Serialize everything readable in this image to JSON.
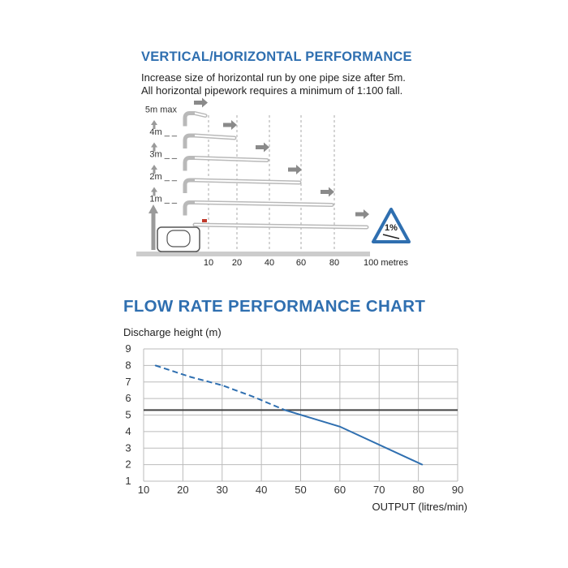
{
  "performance": {
    "title": "VERTICAL/HORIZONTAL PERFORMANCE",
    "note_line1": "Increase size of horizontal run by one pipe size after 5m.",
    "note_line2": "All horizontal pipework requires a minimum of 1:100 fall.",
    "height_labels": [
      "5m max",
      "4m",
      "3m",
      "2m",
      "1m"
    ],
    "run_labels": [
      "10",
      "20",
      "40",
      "60",
      "80",
      "100 metres"
    ],
    "runs": [
      {
        "height_m": 5,
        "length_m": 10
      },
      {
        "height_m": 4,
        "length_m": 20
      },
      {
        "height_m": 3,
        "length_m": 40
      },
      {
        "height_m": 2,
        "length_m": 60
      },
      {
        "height_m": 1,
        "length_m": 80
      },
      {
        "height_m": 0,
        "length_m": 100
      }
    ],
    "fall_badge": "1%",
    "colors": {
      "pipe": "#b9b9b9",
      "arrow": "#8a8a8a",
      "badge": "#2f6fb0"
    }
  },
  "chart_data": {
    "type": "line",
    "title": "FLOW RATE PERFORMANCE CHART",
    "ylabel": "Discharge height (m)",
    "xlabel": "OUTPUT (litres/min)",
    "x_ticks": [
      10,
      20,
      30,
      40,
      50,
      60,
      70,
      80,
      90
    ],
    "y_ticks": [
      1,
      2,
      3,
      4,
      5,
      6,
      7,
      8,
      9
    ],
    "xlim": [
      10,
      90
    ],
    "ylim": [
      1,
      9
    ],
    "reference_line_y": 5.3,
    "series": [
      {
        "style": "dashed",
        "x": [
          13,
          22,
          30,
          38,
          46
        ],
        "y": [
          8.0,
          7.3,
          6.8,
          6.1,
          5.3
        ]
      },
      {
        "style": "solid",
        "x": [
          46,
          60,
          81
        ],
        "y": [
          5.3,
          4.3,
          2.0
        ]
      }
    ],
    "colors": {
      "line": "#2f6fb0",
      "reference": "#444444",
      "grid": "#bbbbbb"
    }
  }
}
